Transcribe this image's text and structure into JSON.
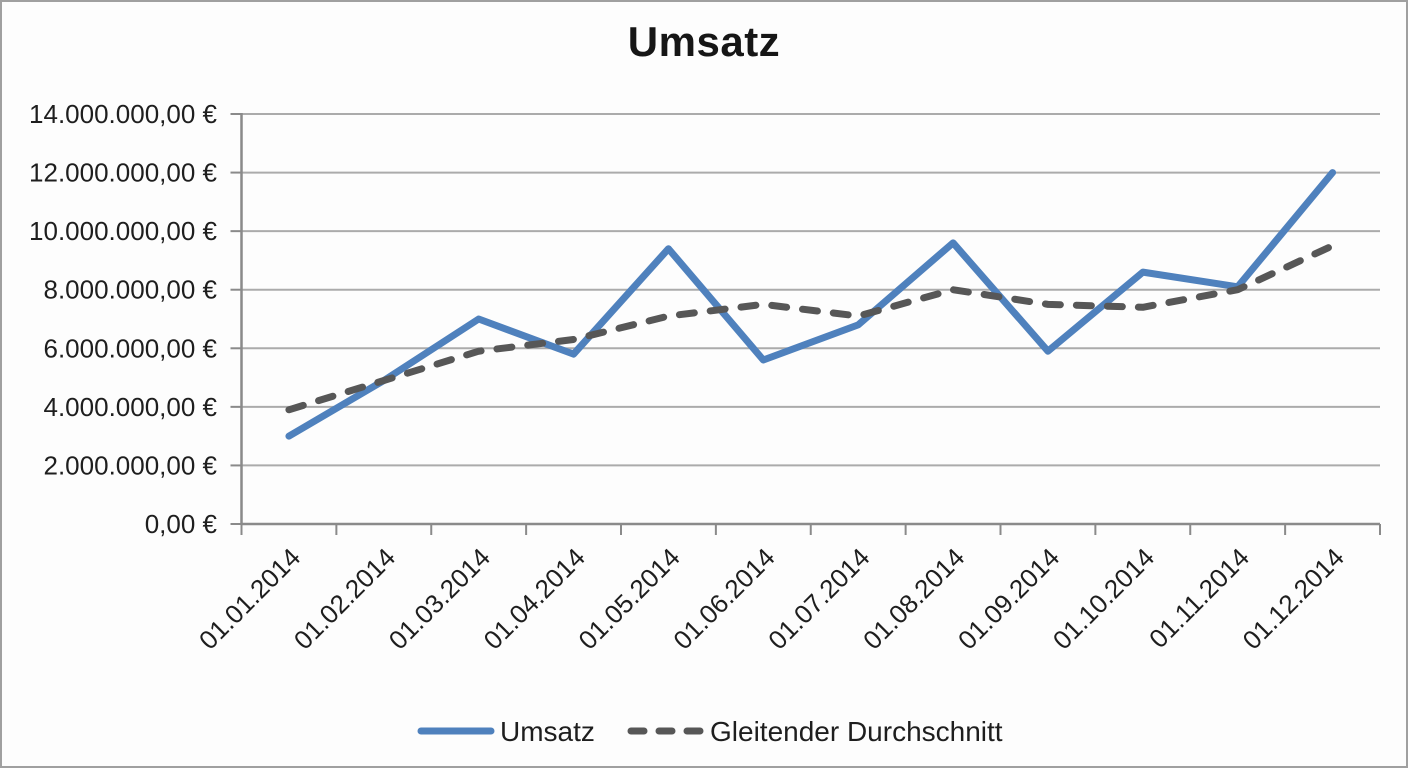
{
  "frame": {
    "background": "#fdfdfd",
    "border_color": "#a0a0a0"
  },
  "chart_data": {
    "type": "line",
    "title": "Umsatz",
    "categories": [
      "01.01.2014",
      "01.02.2014",
      "01.03.2014",
      "01.04.2014",
      "01.05.2014",
      "01.06.2014",
      "01.07.2014",
      "01.08.2014",
      "01.09.2014",
      "01.10.2014",
      "01.11.2014",
      "01.12.2014"
    ],
    "ytick_labels": [
      "0,00 €",
      "2.000.000,00 €",
      "4.000.000,00 €",
      "6.000.000,00 €",
      "8.000.000,00 €",
      "10.000.000,00 €",
      "12.000.000,00 €",
      "14.000.000,00 €"
    ],
    "ylim": [
      0,
      14000000
    ],
    "ytick_step": 2000000,
    "grid": true,
    "legend_position": "bottom",
    "series": [
      {
        "name": "Umsatz",
        "style": "solid",
        "color": "#4f81bd",
        "values": [
          3000000,
          4900000,
          7000000,
          5800000,
          9400000,
          5600000,
          6800000,
          9600000,
          5900000,
          8600000,
          8100000,
          12000000
        ]
      },
      {
        "name": "Gleitender Durchschnitt",
        "style": "dashed",
        "color": "#575757",
        "values": [
          3900000,
          4900000,
          5900000,
          6300000,
          7100000,
          7500000,
          7100000,
          8000000,
          7500000,
          7400000,
          8000000,
          9500000
        ]
      }
    ]
  }
}
